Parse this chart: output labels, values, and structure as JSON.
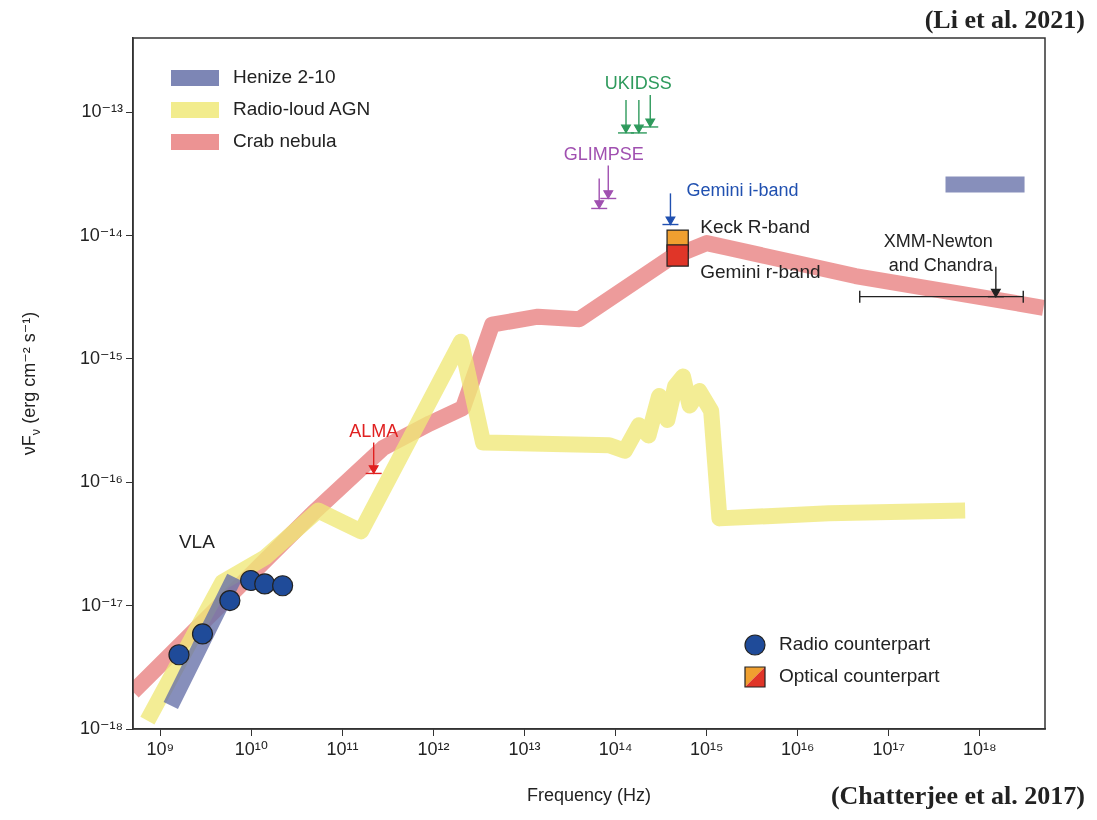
{
  "chart_data": {
    "type": "line",
    "xlabel": "Frequency (Hz)",
    "ylabel": "νF$_{ν}$ (erg cm⁻² s⁻¹)",
    "log": "xy",
    "grid": false,
    "legend": "top left",
    "xlim": [
      500000000.0,
      5.2e+18
    ],
    "ylim": [
      1e-18,
      4e-13
    ],
    "xticks": [
      {
        "value": 1000000000.0,
        "label": "10⁹"
      },
      {
        "value": 10000000000.0,
        "label": "10¹⁰"
      },
      {
        "value": 100000000000.0,
        "label": "10¹¹"
      },
      {
        "value": 1000000000000.0,
        "label": "10¹²"
      },
      {
        "value": 10000000000000.0,
        "label": "10¹³"
      },
      {
        "value": 100000000000000.0,
        "label": "10¹⁴"
      },
      {
        "value": 1000000000000000.0,
        "label": "10¹⁵"
      },
      {
        "value": 1e+16,
        "label": "10¹⁶"
      },
      {
        "value": 1e+17,
        "label": "10¹⁷"
      },
      {
        "value": 1e+18,
        "label": "10¹⁸"
      }
    ],
    "yticks": [
      {
        "value": 1e-18,
        "label": "10⁻¹⁸"
      },
      {
        "value": 1e-17,
        "label": "10⁻¹⁷"
      },
      {
        "value": 1e-16,
        "label": "10⁻¹⁶"
      },
      {
        "value": 1e-15,
        "label": "10⁻¹⁵"
      },
      {
        "value": 1e-14,
        "label": "10⁻¹⁴"
      },
      {
        "value": 1e-13,
        "label": "10⁻¹³"
      }
    ],
    "series": [
      {
        "name": "Henize 2-10",
        "type": "line",
        "color": "#6670a8",
        "x": [
          1300000000.0,
          6500000000.0,
          1000000000000.0,
          4.2e+17,
          3.1e+18
        ],
        "values": [
          1.55e-18,
          1.7e-17,
          null,
          2.6e-14,
          2.6e-14
        ]
      },
      {
        "name": "Radio-loud AGN",
        "type": "line",
        "color": "#f0e878",
        "x": [
          720000000.0,
          4800000000.0,
          14000000000.0,
          54000000000.0,
          160000000000.0,
          2000000000000.0,
          3500000000000.0,
          85000000000000.0,
          126000000000000.0,
          180000000000000.0,
          230000000000000.0,
          300000000000000.0,
          370000000000000.0,
          450000000000000.0,
          550000000000000.0,
          650000000000000.0,
          830000000000000.0,
          1120000000000000.0,
          1380000000000000.0,
          2.2e+16,
          6.9e+17
        ],
        "values": [
          1.17e-18,
          1.55e-17,
          2.45e-17,
          5.9e-17,
          4e-17,
          1.38e-15,
          2.1e-16,
          2e-16,
          1.8e-16,
          2.9e-16,
          2.4e-16,
          5e-16,
          3.2e-16,
          6e-16,
          7.2e-16,
          4.2e-16,
          5.5e-16,
          3.8e-16,
          5.1e-17,
          5.6e-17,
          5.9e-17
        ]
      },
      {
        "name": "Crab nebula",
        "type": "line",
        "color": "#e88080",
        "x": [
          500000000.0,
          47000000000.0,
          280000000000.0,
          910000000000.0,
          2100000000000.0,
          4400000000000.0,
          14000000000000.0,
          40000000000000.0,
          400000000000000.0,
          1000000000000000.0,
          4.3e+16,
          5e+18
        ],
        "values": [
          2e-18,
          5.6e-17,
          1.9e-16,
          3e-16,
          4e-16,
          1.9e-15,
          2.2e-15,
          2.1e-15,
          6.6e-15,
          8.7e-15,
          4.7e-15,
          2.6e-15
        ]
      },
      {
        "name": "Radio counterpart",
        "type": "scatter",
        "marker": "circle",
        "color": "#1f4b99",
        "x": [
          1600000000.0,
          2900000000.0,
          5800000000.0,
          9800000000.0,
          14000000000.0,
          22000000000.0
        ],
        "values": [
          4e-18,
          5.9e-18,
          1.1e-17,
          1.6e-17,
          1.5e-17,
          1.45e-17
        ]
      },
      {
        "name": "Optical counterpart",
        "type": "scatter",
        "marker": "square",
        "colors": [
          "#f0a030",
          "#e03528"
        ],
        "x": [
          480000000000000.0,
          480000000000000.0
        ],
        "values": [
          9.1e-15,
          6.9e-15
        ]
      },
      {
        "name": "UKIDSS",
        "type": "scatter",
        "marker": "triangle",
        "color": "#2e9a5c",
        "x": [
          130000000000000.0,
          180000000000000.0,
          240000000000000.0
        ],
        "values": [
          7.5e-14,
          7.5e-14,
          8.4e-14
        ],
        "errors": [
          [
            6.8e-14,
            1.26e-13
          ],
          [
            6.8e-14,
            1.26e-13
          ],
          [
            7.6e-14,
            1.38e-13
          ]
        ]
      },
      {
        "name": "GLIMPSE",
        "type": "scatter",
        "marker": "triangle",
        "color": "#a050b0",
        "x": [
          66000000000000.0,
          83000000000000.0
        ],
        "values": [
          1.83e-14,
          2.2e-14
        ],
        "errors": [
          [
            1.66e-14,
            2.9e-14
          ],
          [
            2e-14,
            3.7e-14
          ]
        ]
      },
      {
        "name": "Gemini i-band",
        "type": "scatter",
        "marker": "triangle",
        "color": "#2050b0",
        "x": [
          400000000000000.0
        ],
        "values": [
          1.35e-14
        ],
        "errors": [
          [
            1.23e-14,
            2.2e-14
          ]
        ]
      },
      {
        "name": "ALMA",
        "type": "scatter",
        "marker": "triangle",
        "color": "#e02020",
        "x": [
          220000000000.0
        ],
        "values": [
          1.3e-16
        ],
        "errors": [
          [
            1.18e-16,
            2.1e-16
          ]
        ]
      },
      {
        "name": "XMM-Newton and Chandra",
        "type": "scatter",
        "marker": "triangle",
        "color": "#222222",
        "x": [
          1.5e+18
        ],
        "values": [
          3.5e-15
        ],
        "errors": [
          [
            3.2e-15,
            5.6e-15
          ]
        ],
        "xerrors": [
          [
            4.8e+16,
            3e+18
          ]
        ]
      }
    ],
    "annotations": [
      "VLA",
      "Keck R-band",
      "Gemini r-band",
      "(Chatterjee et al. 2017)",
      "(Li et al. 2021)"
    ]
  }
}
